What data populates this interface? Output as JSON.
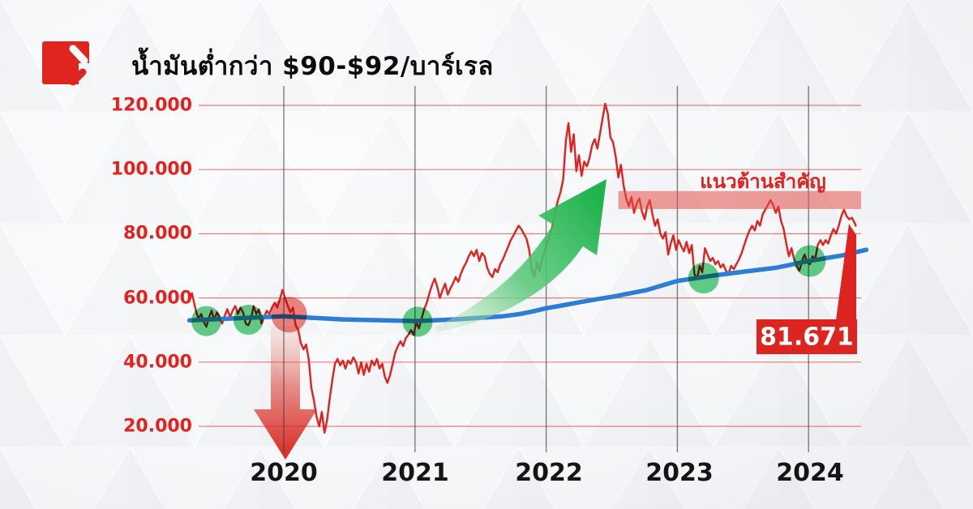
{
  "header": {
    "title": "น้ำมันต่ำกว่า $90-$92/บาร์เรล",
    "logo_icon": "red-square-slashes-logo"
  },
  "chart_data": {
    "type": "line",
    "title": "น้ำมันต่ำกว่า $90-$92/บาร์เรล",
    "xlabel": "",
    "ylabel": "",
    "xlim": [
      2019.28,
      2024.44
    ],
    "ylim": [
      14,
      124
    ],
    "grid": "on",
    "legend": "none",
    "x_ticks": [
      "2020",
      "2021",
      "2022",
      "2023",
      "2024"
    ],
    "x_tick_years": [
      2020,
      2021,
      2022,
      2023,
      2024
    ],
    "y_ticks": [
      "120.000",
      "100.000",
      "80.000",
      "60.000",
      "40.000",
      "20.000"
    ],
    "y_tick_values": [
      120,
      100,
      80,
      60,
      40,
      20
    ],
    "series": [
      {
        "name": "oil-price",
        "color": "#e0211e",
        "points": [
          [
            2019.28,
            59
          ],
          [
            2019.3,
            61.5
          ],
          [
            2019.33,
            56
          ],
          [
            2019.35,
            53.5
          ],
          [
            2019.37,
            55
          ],
          [
            2019.39,
            52.5
          ],
          [
            2019.41,
            51
          ],
          [
            2019.43,
            54
          ],
          [
            2019.45,
            56
          ],
          [
            2019.47,
            53
          ],
          [
            2019.49,
            55.5
          ],
          [
            2019.51,
            54
          ],
          [
            2019.53,
            52
          ],
          [
            2019.55,
            54.5
          ],
          [
            2019.57,
            56.5
          ],
          [
            2019.59,
            54
          ],
          [
            2019.61,
            56
          ],
          [
            2019.63,
            57.5
          ],
          [
            2019.65,
            55
          ],
          [
            2019.67,
            57
          ],
          [
            2019.69,
            55.5
          ],
          [
            2019.71,
            52
          ],
          [
            2019.73,
            51.5
          ],
          [
            2019.75,
            53.5
          ],
          [
            2019.77,
            57.5
          ],
          [
            2019.79,
            55
          ],
          [
            2019.81,
            56.5
          ],
          [
            2019.83,
            52
          ],
          [
            2019.85,
            54
          ],
          [
            2019.87,
            56
          ],
          [
            2019.89,
            55
          ],
          [
            2019.91,
            57
          ],
          [
            2019.93,
            58.5
          ],
          [
            2019.95,
            57
          ],
          [
            2019.97,
            59.5
          ],
          [
            2019.99,
            62.5
          ],
          [
            2020.01,
            60
          ],
          [
            2020.03,
            57.5
          ],
          [
            2020.05,
            55.5
          ],
          [
            2020.07,
            57
          ],
          [
            2020.09,
            51.5
          ],
          [
            2020.11,
            50
          ],
          [
            2020.13,
            46
          ],
          [
            2020.15,
            44
          ],
          [
            2020.17,
            45.5
          ],
          [
            2020.19,
            41
          ],
          [
            2020.21,
            32
          ],
          [
            2020.23,
            28
          ],
          [
            2020.25,
            23
          ],
          [
            2020.27,
            20
          ],
          [
            2020.29,
            24.5
          ],
          [
            2020.31,
            18
          ],
          [
            2020.33,
            22
          ],
          [
            2020.35,
            28.5
          ],
          [
            2020.37,
            34.5
          ],
          [
            2020.39,
            39.5
          ],
          [
            2020.41,
            41
          ],
          [
            2020.43,
            39
          ],
          [
            2020.45,
            40.5
          ],
          [
            2020.47,
            38
          ],
          [
            2020.49,
            40.5
          ],
          [
            2020.51,
            39.5
          ],
          [
            2020.53,
            41.5
          ],
          [
            2020.55,
            40
          ],
          [
            2020.57,
            36.5
          ],
          [
            2020.59,
            40
          ],
          [
            2020.61,
            36
          ],
          [
            2020.63,
            39.5
          ],
          [
            2020.65,
            37
          ],
          [
            2020.67,
            40.5
          ],
          [
            2020.69,
            39
          ],
          [
            2020.71,
            41
          ],
          [
            2020.73,
            38
          ],
          [
            2020.75,
            39.5
          ],
          [
            2020.77,
            35.5
          ],
          [
            2020.79,
            33.5
          ],
          [
            2020.81,
            36
          ],
          [
            2020.83,
            39.5
          ],
          [
            2020.85,
            43
          ],
          [
            2020.87,
            45
          ],
          [
            2020.89,
            46.5
          ],
          [
            2020.91,
            45
          ],
          [
            2020.93,
            47.5
          ],
          [
            2020.95,
            48.5
          ],
          [
            2020.97,
            50
          ],
          [
            2020.99,
            48.5
          ],
          [
            2021.01,
            52.5
          ],
          [
            2021.03,
            50.5
          ],
          [
            2021.05,
            53.5
          ],
          [
            2021.07,
            56.5
          ],
          [
            2021.09,
            58.5
          ],
          [
            2021.11,
            61.5
          ],
          [
            2021.13,
            64
          ],
          [
            2021.15,
            66
          ],
          [
            2021.17,
            63.5
          ],
          [
            2021.19,
            60
          ],
          [
            2021.21,
            62.5
          ],
          [
            2021.23,
            64.5
          ],
          [
            2021.25,
            61
          ],
          [
            2021.27,
            63
          ],
          [
            2021.29,
            64.5
          ],
          [
            2021.31,
            66.5
          ],
          [
            2021.33,
            65
          ],
          [
            2021.35,
            67.5
          ],
          [
            2021.37,
            69.5
          ],
          [
            2021.39,
            71
          ],
          [
            2021.41,
            73
          ],
          [
            2021.43,
            74.5
          ],
          [
            2021.45,
            73
          ],
          [
            2021.47,
            75
          ],
          [
            2021.49,
            71.5
          ],
          [
            2021.51,
            74
          ],
          [
            2021.53,
            73
          ],
          [
            2021.55,
            69.5
          ],
          [
            2021.57,
            67.5
          ],
          [
            2021.59,
            66.5
          ],
          [
            2021.61,
            69
          ],
          [
            2021.63,
            68
          ],
          [
            2021.65,
            70.5
          ],
          [
            2021.67,
            72
          ],
          [
            2021.69,
            74
          ],
          [
            2021.71,
            76
          ],
          [
            2021.73,
            78
          ],
          [
            2021.75,
            79.5
          ],
          [
            2021.77,
            81
          ],
          [
            2021.79,
            82.5
          ],
          [
            2021.81,
            81.5
          ],
          [
            2021.83,
            80
          ],
          [
            2021.85,
            78.5
          ],
          [
            2021.87,
            75
          ],
          [
            2021.89,
            69
          ],
          [
            2021.91,
            66.5
          ],
          [
            2021.93,
            71
          ],
          [
            2021.95,
            68.5
          ],
          [
            2021.97,
            72
          ],
          [
            2021.99,
            75
          ],
          [
            2022.01,
            77.5
          ],
          [
            2022.03,
            79.5
          ],
          [
            2022.05,
            83
          ],
          [
            2022.07,
            87
          ],
          [
            2022.09,
            90.5
          ],
          [
            2022.11,
            93
          ],
          [
            2022.13,
            97
          ],
          [
            2022.15,
            109
          ],
          [
            2022.17,
            114.5
          ],
          [
            2022.19,
            105.5
          ],
          [
            2022.21,
            111
          ],
          [
            2022.23,
            99.5
          ],
          [
            2022.25,
            104.5
          ],
          [
            2022.27,
            98
          ],
          [
            2022.29,
            102.5
          ],
          [
            2022.31,
            101
          ],
          [
            2022.33,
            103.5
          ],
          [
            2022.35,
            107.5
          ],
          [
            2022.37,
            109.5
          ],
          [
            2022.39,
            106.5
          ],
          [
            2022.41,
            111
          ],
          [
            2022.43,
            116
          ],
          [
            2022.45,
            120.5
          ],
          [
            2022.47,
            117.5
          ],
          [
            2022.49,
            110
          ],
          [
            2022.51,
            108.5
          ],
          [
            2022.53,
            104
          ],
          [
            2022.55,
            97.5
          ],
          [
            2022.57,
            101.5
          ],
          [
            2022.59,
            95
          ],
          [
            2022.61,
            91
          ],
          [
            2022.63,
            88.5
          ],
          [
            2022.65,
            91.5
          ],
          [
            2022.67,
            86.5
          ],
          [
            2022.69,
            89.5
          ],
          [
            2022.71,
            91
          ],
          [
            2022.73,
            87
          ],
          [
            2022.75,
            84.5
          ],
          [
            2022.77,
            88.5
          ],
          [
            2022.79,
            90.5
          ],
          [
            2022.81,
            86
          ],
          [
            2022.83,
            82.5
          ],
          [
            2022.85,
            84.5
          ],
          [
            2022.87,
            80
          ],
          [
            2022.89,
            78.5
          ],
          [
            2022.91,
            80.5
          ],
          [
            2022.93,
            73.5
          ],
          [
            2022.95,
            77
          ],
          [
            2022.97,
            79.5
          ],
          [
            2022.99,
            75
          ],
          [
            2023.01,
            78
          ],
          [
            2023.03,
            76
          ],
          [
            2023.05,
            74.5
          ],
          [
            2023.07,
            77.5
          ],
          [
            2023.09,
            74
          ],
          [
            2023.11,
            76.5
          ],
          [
            2023.13,
            67.5
          ],
          [
            2023.15,
            66
          ],
          [
            2023.17,
            70
          ],
          [
            2023.19,
            68
          ],
          [
            2023.21,
            75.5
          ],
          [
            2023.23,
            73.5
          ],
          [
            2023.25,
            71.5
          ],
          [
            2023.27,
            72.5
          ],
          [
            2023.29,
            70.5
          ],
          [
            2023.31,
            71.5
          ],
          [
            2023.33,
            69.5
          ],
          [
            2023.35,
            70.5
          ],
          [
            2023.37,
            68.5
          ],
          [
            2023.39,
            67.5
          ],
          [
            2023.41,
            70
          ],
          [
            2023.43,
            69
          ],
          [
            2023.45,
            70.5
          ],
          [
            2023.47,
            72
          ],
          [
            2023.49,
            74
          ],
          [
            2023.51,
            76.5
          ],
          [
            2023.53,
            79
          ],
          [
            2023.55,
            81
          ],
          [
            2023.57,
            82.5
          ],
          [
            2023.59,
            81
          ],
          [
            2023.61,
            84
          ],
          [
            2023.63,
            82.5
          ],
          [
            2023.65,
            86
          ],
          [
            2023.67,
            87.5
          ],
          [
            2023.69,
            89
          ],
          [
            2023.71,
            90.5
          ],
          [
            2023.73,
            89
          ],
          [
            2023.75,
            86.5
          ],
          [
            2023.77,
            88.5
          ],
          [
            2023.79,
            84
          ],
          [
            2023.81,
            81.5
          ],
          [
            2023.83,
            77
          ],
          [
            2023.85,
            73
          ],
          [
            2023.87,
            75.5
          ],
          [
            2023.89,
            72
          ],
          [
            2023.91,
            70
          ],
          [
            2023.93,
            68.5
          ],
          [
            2023.95,
            71.5
          ],
          [
            2023.97,
            73.5
          ],
          [
            2023.99,
            71
          ],
          [
            2024.01,
            70.5
          ],
          [
            2024.03,
            73
          ],
          [
            2024.05,
            72
          ],
          [
            2024.07,
            76.5
          ],
          [
            2024.09,
            78
          ],
          [
            2024.11,
            76.5
          ],
          [
            2024.13,
            78
          ],
          [
            2024.15,
            77
          ],
          [
            2024.17,
            79.5
          ],
          [
            2024.19,
            81.5
          ],
          [
            2024.21,
            80
          ],
          [
            2024.23,
            82.5
          ],
          [
            2024.25,
            85.5
          ],
          [
            2024.27,
            87.5
          ],
          [
            2024.29,
            85.5
          ],
          [
            2024.31,
            84.5
          ],
          [
            2024.33,
            85
          ],
          [
            2024.35,
            83.5
          ],
          [
            2024.36,
            82.5
          ]
        ]
      },
      {
        "name": "long-term-trend",
        "color": "#2b7ed3",
        "points": [
          [
            2019.28,
            53
          ],
          [
            2019.7,
            53.8
          ],
          [
            2020.0,
            54.3
          ],
          [
            2020.45,
            53.3
          ],
          [
            2021.0,
            52.8
          ],
          [
            2021.3,
            53.3
          ],
          [
            2021.67,
            54.3
          ],
          [
            2021.8,
            55.0
          ],
          [
            2021.9,
            55.8
          ],
          [
            2022.0,
            56.8
          ],
          [
            2022.1,
            57.5
          ],
          [
            2022.27,
            58.8
          ],
          [
            2022.4,
            59.7
          ],
          [
            2022.51,
            60.4
          ],
          [
            2022.76,
            62.4
          ],
          [
            2023.0,
            65.3
          ],
          [
            2023.26,
            66.9
          ],
          [
            2023.51,
            68.2
          ],
          [
            2023.75,
            69.4
          ],
          [
            2024.0,
            71.5
          ],
          [
            2024.25,
            73.2
          ],
          [
            2024.44,
            75.0
          ]
        ]
      }
    ],
    "annotations": {
      "resistance": {
        "label": "แนวต้านสำคัญ",
        "price_top": 93.3,
        "price_bottom": 87.7,
        "start_year": 2022.55,
        "end_year": 2024.4,
        "color": "#e4524d"
      },
      "last_price": {
        "value": "81.671",
        "box_color": "#dc2420",
        "text_color": "#ffffff"
      },
      "trend_touch_markers": [
        {
          "year": 2019.41,
          "price": 52.8,
          "r": 18.5,
          "color": "#4ec377"
        },
        {
          "year": 2019.73,
          "price": 53.2,
          "r": 18.5,
          "color": "#4ec377"
        },
        {
          "year": 2021.02,
          "price": 52.6,
          "r": 18.5,
          "color": "#4ec377"
        },
        {
          "year": 2023.2,
          "price": 66.2,
          "r": 19.0,
          "color": "#4ec377"
        },
        {
          "year": 2024.01,
          "price": 71.5,
          "r": 19.5,
          "color": "#4ec377"
        }
      ],
      "crash_marker": {
        "year": 2020.04,
        "price": 54.8,
        "r": 22,
        "color": "#dc352e"
      },
      "crash_arrow": {
        "direction": "down",
        "year": 2020.01,
        "color": "#d81f19"
      },
      "rally_arrow": {
        "direction": "up-right",
        "from_year": 2021.15,
        "to_year": 2022.45,
        "color": "#27b44e"
      }
    },
    "axis_colors": {
      "y_tick": "#e3211f",
      "x_tick": "#151515",
      "h_grid": "#dd4b47",
      "v_grid": "#3d3d3d"
    }
  }
}
